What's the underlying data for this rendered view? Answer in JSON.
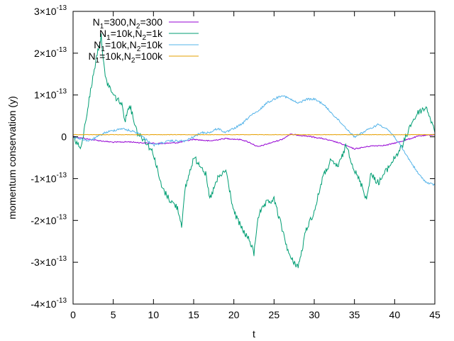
{
  "chart_data": {
    "type": "line",
    "title": "",
    "xlabel": "t",
    "ylabel": "momentum conservation (y)",
    "xlim": [
      0,
      45
    ],
    "ylim": [
      -4e-13,
      3e-13
    ],
    "x_ticks": [
      {
        "value": 0,
        "label": "0"
      },
      {
        "value": 5,
        "label": "5"
      },
      {
        "value": 10,
        "label": "10"
      },
      {
        "value": 15,
        "label": "15"
      },
      {
        "value": 20,
        "label": "20"
      },
      {
        "value": 25,
        "label": "25"
      },
      {
        "value": 30,
        "label": "30"
      },
      {
        "value": 35,
        "label": "35"
      },
      {
        "value": 40,
        "label": "40"
      },
      {
        "value": 45,
        "label": "45"
      }
    ],
    "y_ticks": [
      {
        "value": 3e-13,
        "mant": "3",
        "base": "×10",
        "exp": "-13"
      },
      {
        "value": 2e-13,
        "mant": "2",
        "base": "×10",
        "exp": "-13"
      },
      {
        "value": 1e-13,
        "mant": "1",
        "base": "×10",
        "exp": "-13"
      },
      {
        "value": 0,
        "mant": "0",
        "base": "",
        "exp": ""
      },
      {
        "value": -1e-13,
        "mant": "-1",
        "base": "×10",
        "exp": "-13"
      },
      {
        "value": -2e-13,
        "mant": "-2",
        "base": "×10",
        "exp": "-13"
      },
      {
        "value": -3e-13,
        "mant": "-3",
        "base": "×10",
        "exp": "-13"
      },
      {
        "value": -4e-13,
        "mant": "-4",
        "base": "×10",
        "exp": "-13"
      }
    ],
    "grid": false,
    "legend_position": "top-left",
    "series": [
      {
        "name": "N1=300,N2=300",
        "label_parts": [
          "N",
          "1",
          "=300,N",
          "2",
          "=300"
        ],
        "color": "#9400d3",
        "x": [
          0,
          2,
          4,
          5,
          7,
          9,
          11,
          13,
          15,
          17,
          19,
          21,
          22,
          23,
          25,
          26,
          27,
          28,
          29,
          31,
          33,
          35,
          37,
          39,
          41,
          43,
          45
        ],
        "y": [
          1e-15,
          -6e-15,
          -1.1e-14,
          -1.3e-14,
          -1.2e-14,
          -1.5e-14,
          -1.6e-14,
          -1.4e-14,
          -6e-15,
          -1e-14,
          -4e-15,
          -7e-15,
          -1.4e-14,
          -2.4e-14,
          -1.2e-14,
          -6e-15,
          6e-15,
          4e-15,
          2e-15,
          -4e-15,
          -1.4e-14,
          -2.9e-14,
          -2.2e-14,
          -2e-14,
          -1e-14,
          2e-15,
          5e-15
        ]
      },
      {
        "name": "N1=10k,N2=1k",
        "label_parts": [
          "N",
          "1",
          "=10k,N",
          "2",
          "=1k"
        ],
        "color": "#009e73",
        "x": [
          0,
          1,
          2,
          3,
          3.5,
          4,
          5,
          6,
          6.5,
          7,
          8,
          9,
          10,
          11,
          12,
          13,
          13.5,
          14,
          15,
          16,
          16.5,
          17,
          18,
          19,
          20,
          21,
          22,
          22.5,
          23,
          24,
          25,
          26,
          27,
          28,
          28.5,
          29,
          30,
          31,
          32,
          33,
          34,
          35,
          36,
          36.5,
          37,
          38,
          39,
          40,
          41,
          42,
          43,
          44,
          45
        ],
        "y": [
          0,
          -3e-14,
          9e-14,
          2e-13,
          2.4e-13,
          1.4e-13,
          1e-13,
          8e-14,
          4e-14,
          8e-14,
          1e-14,
          -1e-14,
          -4e-14,
          -1.2e-13,
          -1.5e-13,
          -1.7e-13,
          -2.1e-13,
          -1.2e-13,
          -5e-14,
          -7e-14,
          -9e-14,
          -1.5e-13,
          -1e-13,
          -8e-14,
          -1.8e-13,
          -2.2e-13,
          -2.5e-13,
          -2.8e-13,
          -1.9e-13,
          -1.6e-13,
          -1.5e-13,
          -2.2e-13,
          -2.9e-13,
          -3.1e-13,
          -2.7e-13,
          -2.2e-13,
          -1.8e-13,
          -1e-13,
          -6e-14,
          -7e-14,
          -2e-14,
          -8e-14,
          -1.2e-13,
          -1.5e-13,
          -9e-14,
          -1.1e-13,
          -8e-14,
          -5e-14,
          -2e-14,
          3e-14,
          6e-14,
          7e-14,
          1e-14
        ]
      },
      {
        "name": "N1=10k,N2=10k",
        "label_parts": [
          "N",
          "1",
          "=10k,N",
          "2",
          "=10k"
        ],
        "color": "#56b4e9",
        "x": [
          0,
          2,
          4,
          6,
          8,
          10,
          12,
          14,
          16,
          17,
          18,
          19,
          20,
          21,
          22,
          23,
          24,
          25,
          26,
          27,
          28,
          29,
          30,
          31,
          32,
          33,
          34,
          35,
          36,
          37,
          38,
          39,
          40,
          41,
          42,
          43,
          44,
          45
        ],
        "y": [
          0,
          -1e-14,
          1e-14,
          2e-14,
          1e-14,
          -2e-14,
          -1e-14,
          -1e-14,
          1e-14,
          1e-14,
          2e-14,
          1e-14,
          2e-14,
          3e-14,
          5e-14,
          6e-14,
          8e-14,
          9e-14,
          1e-13,
          9e-14,
          8e-14,
          9e-14,
          9e-14,
          8e-14,
          6e-14,
          4e-14,
          2e-14,
          0.0,
          1e-14,
          2e-14,
          3e-14,
          2e-14,
          0.0,
          -3e-14,
          -6e-14,
          -9e-14,
          -1.1e-13,
          -1.15e-13
        ]
      },
      {
        "name": "N1=10k,N2=100k",
        "label_parts": [
          "N",
          "1",
          "=10k,N",
          "2",
          "=100k"
        ],
        "color": "#e69f00",
        "x": [
          0,
          45
        ],
        "y": [
          5e-15,
          5e-15
        ]
      }
    ]
  }
}
